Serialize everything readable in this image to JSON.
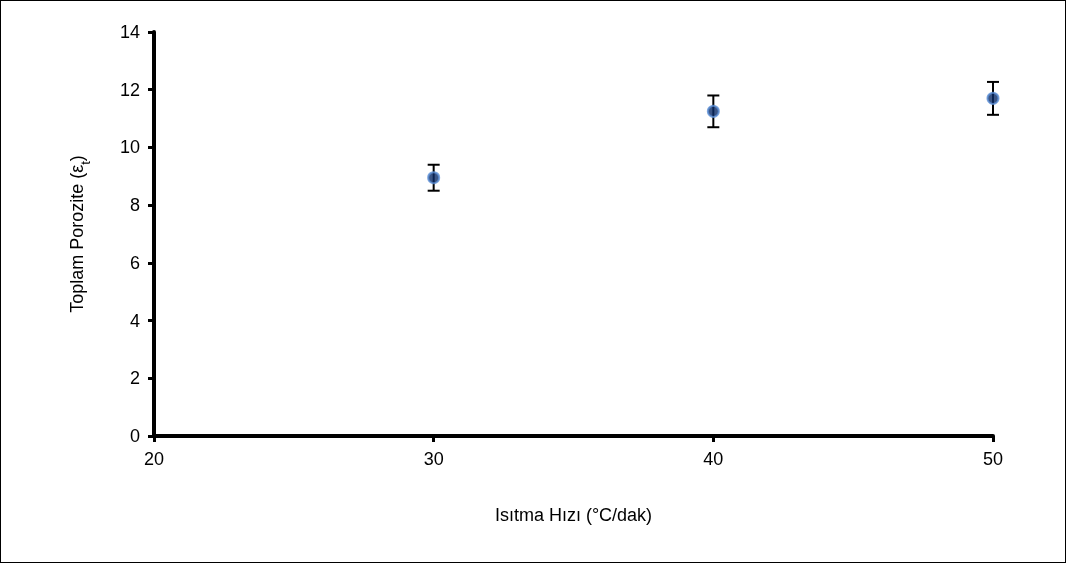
{
  "chart_data": {
    "type": "scatter",
    "xlabel": "Isıtma Hızı (°C/dak)",
    "ylabel": "Toplam Porozite (ε$_{t}$)",
    "x": [
      30,
      40,
      50
    ],
    "series": [
      {
        "color": "#0a2a66",
        "values": [
          8.95,
          11.25,
          11.7
        ],
        "errors": [
          0.45,
          0.55,
          0.57
        ]
      }
    ],
    "xlim": [
      20,
      50
    ],
    "xticks": [
      20,
      30,
      40,
      50
    ],
    "ylim": [
      0,
      14
    ],
    "yticks": [
      0,
      2,
      4,
      6,
      8,
      10,
      12,
      14
    ],
    "marker": "circle",
    "grid": false
  }
}
